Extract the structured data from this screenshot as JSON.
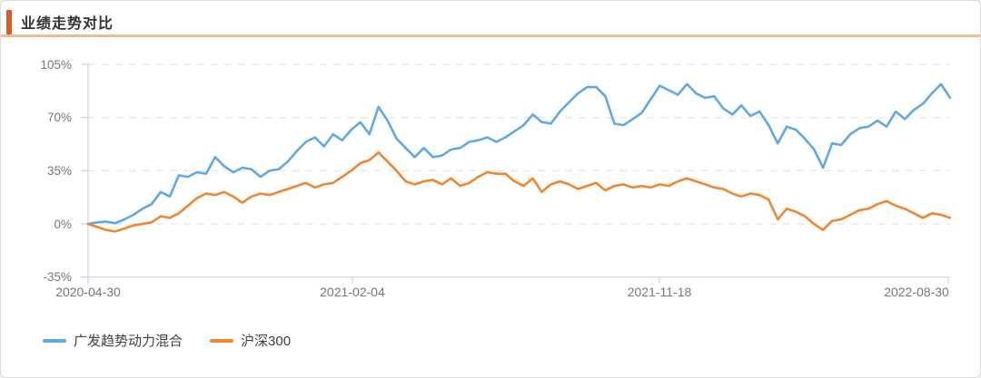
{
  "header": {
    "title": "业绩走势对比"
  },
  "colors": {
    "accent_bar": "#dc5a28",
    "header_underline": "#f5ba90",
    "card_border": "#dcdcdc",
    "grid_line": "#e3e3e3",
    "axis_line": "#c9d4e4",
    "tick_label": "#74787d",
    "legend_text": "#404040",
    "series_fund": "#5fa9e4",
    "series_index": "#f0862f"
  },
  "chart_data": {
    "type": "line",
    "title": "业绩走势对比",
    "xlabel": "",
    "ylabel": "",
    "ylim": [
      -35,
      105
    ],
    "grid": true,
    "legend_position": "bottom-left",
    "y_ticks": [
      {
        "label": "105%",
        "value": 105
      },
      {
        "label": "70%",
        "value": 70
      },
      {
        "label": "35%",
        "value": 35
      },
      {
        "label": "0%",
        "value": 0
      },
      {
        "label": "-35%",
        "value": -35
      }
    ],
    "x_ticks": [
      {
        "label": "2020-04-30",
        "pos": 0.0
      },
      {
        "label": "2021-02-04",
        "pos": 0.3066
      },
      {
        "label": "2021-11-18",
        "pos": 0.6628
      },
      {
        "label": "2022-08-30",
        "pos": 0.9979
      }
    ],
    "series": [
      {
        "name": "广发趋势动力混合",
        "color": "#5fa9e4",
        "unit": "%",
        "values": [
          0,
          1,
          1.5,
          0.5,
          3,
          6,
          10,
          13,
          21,
          18,
          32,
          31,
          34,
          33,
          44,
          38,
          34,
          37,
          36,
          31,
          35,
          36,
          41,
          48,
          54,
          57,
          51,
          59,
          55,
          62,
          67,
          59,
          77,
          68,
          56,
          50,
          44,
          50,
          44,
          45,
          49,
          50,
          54,
          55,
          57,
          54,
          57,
          61,
          65,
          72,
          67,
          66,
          74,
          80,
          86,
          90,
          90,
          84,
          66,
          65,
          69,
          73,
          82,
          91,
          88,
          85,
          92,
          86,
          83,
          84,
          76,
          72,
          78,
          71,
          74,
          65,
          53,
          64,
          62,
          56,
          49,
          37,
          53,
          52,
          59,
          63,
          64,
          68,
          64,
          74,
          69,
          75,
          79,
          86,
          92,
          83
        ]
      },
      {
        "name": "沪深300",
        "color": "#f0862f",
        "unit": "%",
        "values": [
          0,
          -2,
          -4,
          -5,
          -3,
          -1,
          0,
          1,
          5,
          4,
          7,
          12,
          17,
          20,
          19,
          21,
          18,
          14,
          18,
          20,
          19,
          21,
          23,
          25,
          27,
          24,
          26,
          27,
          31,
          35,
          40,
          42,
          47,
          41,
          35,
          28,
          26,
          28,
          29,
          26,
          30,
          25,
          27,
          31,
          34,
          33,
          33,
          28,
          25,
          30,
          21,
          26,
          28,
          26,
          23,
          25,
          27,
          22,
          25,
          26,
          24,
          25,
          24,
          26,
          25,
          28,
          30,
          28,
          26,
          24,
          23,
          20,
          18,
          20,
          19,
          16,
          3,
          10,
          8,
          5,
          0,
          -4,
          2,
          3,
          6,
          9,
          10,
          13,
          15,
          12,
          10,
          7,
          4,
          7,
          6,
          4
        ]
      }
    ]
  }
}
